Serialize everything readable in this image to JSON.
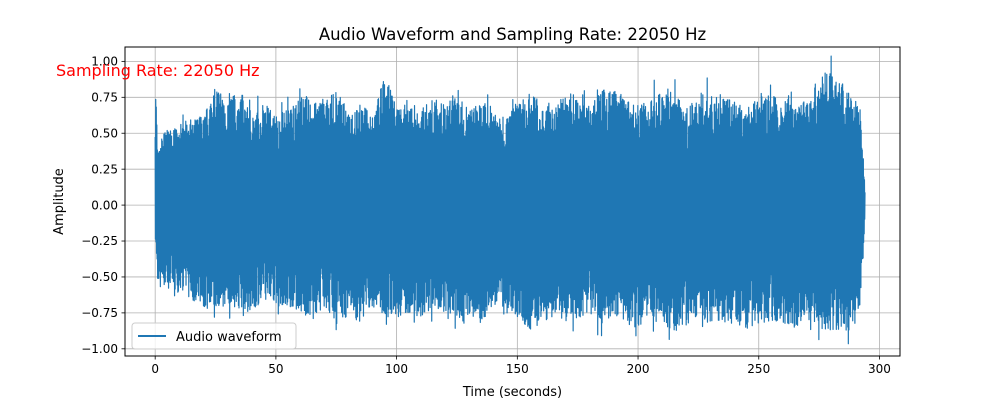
{
  "chart_data": {
    "type": "line",
    "title": "Audio Waveform and Sampling Rate: 22050 Hz",
    "xlabel": "Time (seconds)",
    "ylabel": "Amplitude",
    "xlim": [
      -12.5,
      308.5
    ],
    "ylim": [
      -1.05,
      1.1
    ],
    "xticks": [
      0,
      50,
      100,
      150,
      200,
      250,
      300
    ],
    "yticks": [
      -1.0,
      -0.75,
      -0.5,
      -0.25,
      0.0,
      0.25,
      0.5,
      0.75,
      1.0
    ],
    "xtick_labels": [
      "0",
      "50",
      "100",
      "150",
      "200",
      "250",
      "300"
    ],
    "ytick_labels": [
      "−1.00",
      "−0.75",
      "−0.50",
      "−0.25",
      "0.00",
      "0.25",
      "0.50",
      "0.75",
      "1.00"
    ],
    "grid": true,
    "legend_placement": "lower-left",
    "annotation": {
      "text": "Sampling Rate: 22050 Hz",
      "x": -12.5,
      "y": 0.95,
      "color": "#ff0000"
    },
    "series": [
      {
        "name": "Audio waveform",
        "color": "#1f77b4",
        "time_seconds": [
          0,
          0.5,
          1,
          2,
          3,
          5,
          8,
          10,
          12,
          15,
          20,
          25,
          30,
          35,
          40,
          45,
          50,
          55,
          60,
          65,
          70,
          75,
          80,
          85,
          90,
          95,
          100,
          105,
          110,
          115,
          120,
          125,
          130,
          135,
          140,
          145,
          150,
          155,
          160,
          165,
          170,
          175,
          180,
          185,
          190,
          195,
          200,
          205,
          210,
          215,
          220,
          225,
          230,
          235,
          240,
          245,
          250,
          255,
          260,
          265,
          270,
          275,
          280,
          285,
          290,
          292,
          293,
          294
        ],
        "upper_envelope": [
          0.86,
          0.72,
          0.35,
          0.4,
          0.5,
          0.52,
          0.55,
          0.52,
          0.58,
          0.6,
          0.62,
          0.82,
          0.78,
          0.8,
          0.66,
          0.72,
          0.62,
          0.68,
          0.82,
          0.7,
          0.74,
          0.8,
          0.66,
          0.7,
          0.64,
          0.92,
          0.68,
          0.75,
          0.66,
          0.75,
          0.7,
          0.82,
          0.66,
          0.72,
          0.68,
          0.62,
          0.7,
          0.78,
          0.72,
          0.66,
          0.8,
          0.74,
          0.7,
          0.8,
          0.82,
          0.74,
          0.7,
          0.75,
          0.84,
          0.8,
          0.68,
          0.74,
          0.82,
          0.78,
          0.72,
          0.68,
          0.8,
          0.76,
          0.74,
          0.75,
          0.72,
          0.9,
          0.94,
          0.84,
          0.75,
          0.62,
          0.48,
          0.1
        ],
        "lower_envelope": [
          -0.3,
          -0.34,
          -0.56,
          -0.58,
          -0.56,
          -0.6,
          -0.58,
          -0.62,
          -0.6,
          -0.66,
          -0.72,
          -0.74,
          -0.7,
          -0.72,
          -0.75,
          -0.66,
          -0.7,
          -0.72,
          -0.74,
          -0.82,
          -0.72,
          -0.8,
          -0.78,
          -0.82,
          -0.72,
          -0.76,
          -0.82,
          -0.74,
          -0.8,
          -0.72,
          -0.76,
          -0.88,
          -0.78,
          -0.82,
          -0.74,
          -0.76,
          -0.78,
          -0.88,
          -0.82,
          -0.78,
          -0.82,
          -0.8,
          -0.76,
          -0.84,
          -0.76,
          -0.82,
          -0.86,
          -0.78,
          -0.82,
          -0.88,
          -0.84,
          -0.8,
          -0.82,
          -0.84,
          -0.82,
          -0.86,
          -0.84,
          -0.8,
          -0.82,
          -0.86,
          -0.84,
          -0.88,
          -0.9,
          -0.88,
          -0.86,
          -0.7,
          -0.5,
          -0.05
        ]
      }
    ]
  }
}
